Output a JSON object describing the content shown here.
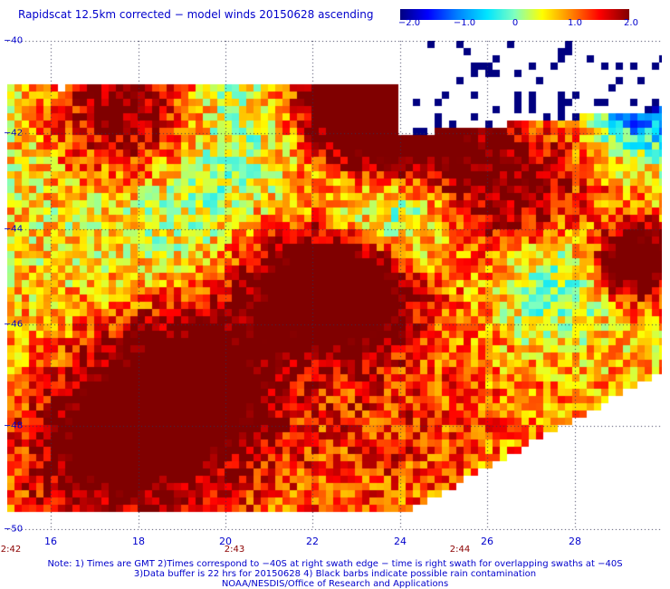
{
  "title": "Rapidscat 12.5km corrected − model winds 20150628 ascending",
  "colorbar": {
    "min": -2.0,
    "max": 2.0,
    "ticks": [
      "−2.0",
      "−1.0",
      "0",
      "1.0",
      "2.0"
    ],
    "colors": [
      "#000080",
      "#0000ff",
      "#0080ff",
      "#00e5ff",
      "#7fffbf",
      "#ffff00",
      "#ff8000",
      "#ff0000",
      "#800000"
    ]
  },
  "map": {
    "lat_labels": [
      "−40",
      "−42",
      "−44",
      "−46",
      "−48",
      "−50"
    ],
    "lon_labels": [
      "16",
      "18",
      "20",
      "22",
      "24",
      "26",
      "28"
    ],
    "lon_range": [
      14.9,
      29.7
    ],
    "lat_range": [
      -40,
      -50
    ]
  },
  "times": [
    "2:42",
    "2:43",
    "2:44"
  ],
  "notes": {
    "line1": "Note: 1) Times are GMT 2)Times correspond to −40S at right swath edge − time is right swath for overlapping swaths at −40S",
    "line2": "3)Data buffer is 22 hrs for 20150628 4) Black barbs indicate possible rain contamination",
    "line3": "NOAA/NESDIS/Office of Research and Applications"
  }
}
